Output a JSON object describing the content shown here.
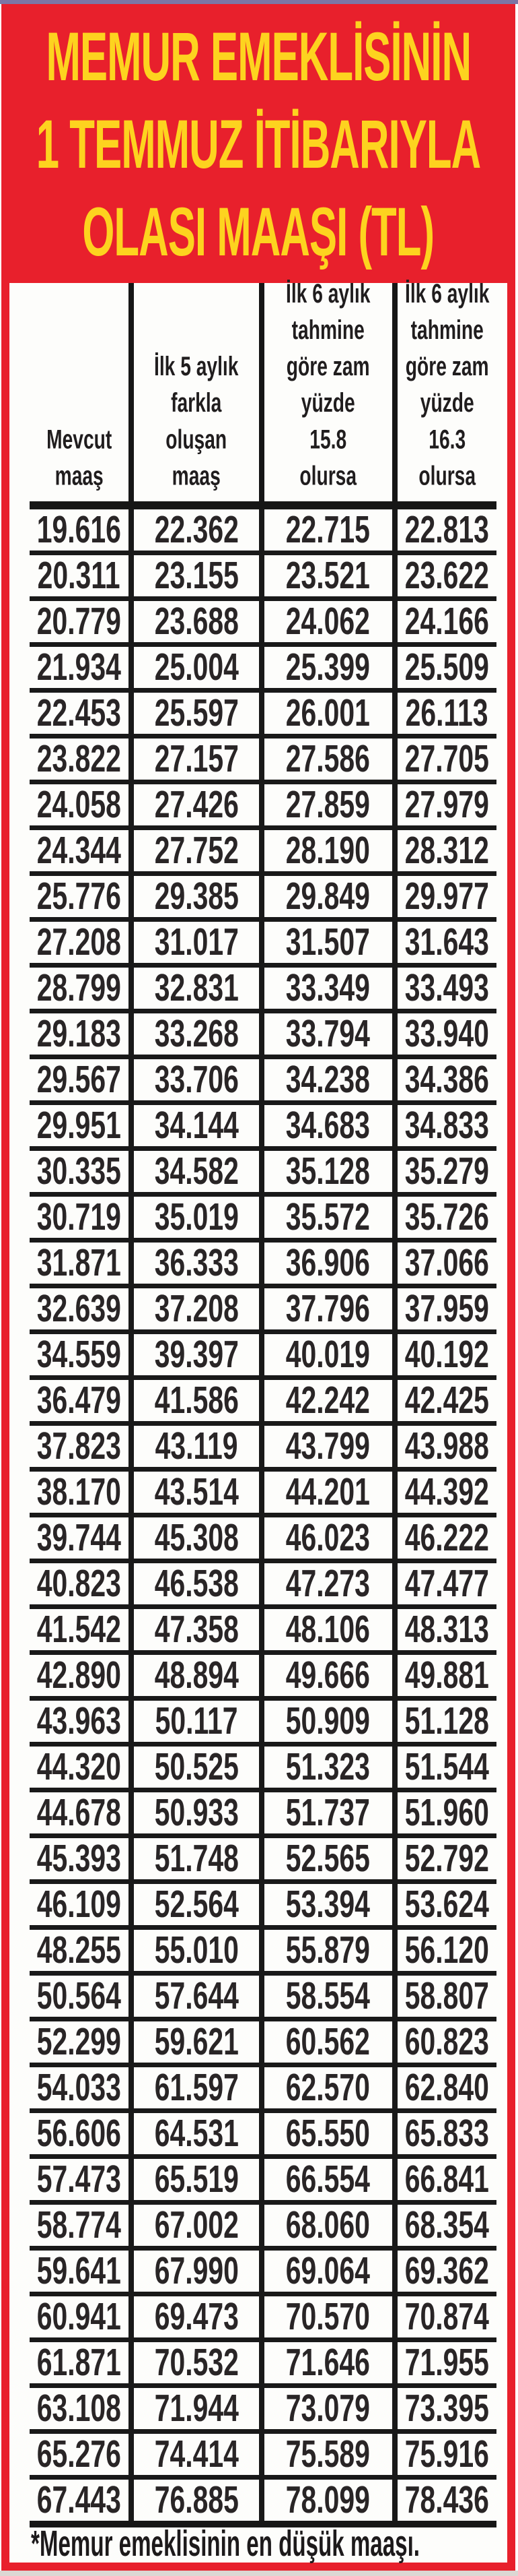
{
  "title": {
    "line1": "MEMUR EMEKLİSİNİN",
    "line2": "1 TEMMUZ İTİBARIYLA",
    "line3": "OLASI MAAŞI (TL)"
  },
  "footnote": "*Memur emeklisinin en düşük maaşı.",
  "colors": {
    "header_background": "#e8202c",
    "title_text": "#fdd31f",
    "table_text": "#292526",
    "grid_lines": "#191919",
    "top_strip": "#7c76a5",
    "frame_border": "#e8202c"
  },
  "table": {
    "columns": [
      {
        "label": "Mevcut maaş",
        "lines": [
          "Mevcut",
          "maaş"
        ]
      },
      {
        "label": "İlk 5 aylık farkla oluşan maaş",
        "lines": [
          "İlk 5 aylık",
          "farkla",
          "oluşan",
          "maaş"
        ]
      },
      {
        "label": "İlk 6 aylık tahmine göre zam yüzde 15.8 olursa",
        "lines": [
          "İlk 6 aylık",
          "tahmine",
          "göre zam",
          "yüzde",
          "15.8",
          "olursa"
        ]
      },
      {
        "label": "İlk 6 aylık tahmine göre zam yüzde 16.3 olursa",
        "lines": [
          "İlk 6 aylık",
          "tahmine",
          "göre zam",
          "yüzde",
          "16.3",
          "olursa"
        ]
      }
    ],
    "rows": [
      [
        "19.616",
        "22.362",
        "22.715",
        "22.813"
      ],
      [
        "20.311",
        "23.155",
        "23.521",
        "23.622"
      ],
      [
        "20.779",
        "23.688",
        "24.062",
        "24.166"
      ],
      [
        "21.934",
        "25.004",
        "25.399",
        "25.509"
      ],
      [
        "22.453",
        "25.597",
        "26.001",
        "26.113"
      ],
      [
        "23.822",
        "27.157",
        "27.586",
        "27.705"
      ],
      [
        "24.058",
        "27.426",
        "27.859",
        "27.979"
      ],
      [
        "24.344",
        "27.752",
        "28.190",
        "28.312"
      ],
      [
        "25.776",
        "29.385",
        "29.849",
        "29.977"
      ],
      [
        "27.208",
        "31.017",
        "31.507",
        "31.643"
      ],
      [
        "28.799",
        "32.831",
        "33.349",
        "33.493"
      ],
      [
        "29.183",
        "33.268",
        "33.794",
        "33.940"
      ],
      [
        "29.567",
        "33.706",
        "34.238",
        "34.386"
      ],
      [
        "29.951",
        "34.144",
        "34.683",
        "34.833"
      ],
      [
        "30.335",
        "34.582",
        "35.128",
        "35.279"
      ],
      [
        "30.719",
        "35.019",
        "35.572",
        "35.726"
      ],
      [
        "31.871",
        "36.333",
        "36.906",
        "37.066"
      ],
      [
        "32.639",
        "37.208",
        "37.796",
        "37.959"
      ],
      [
        "34.559",
        "39.397",
        "40.019",
        "40.192"
      ],
      [
        "36.479",
        "41.586",
        "42.242",
        "42.425"
      ],
      [
        "37.823",
        "43.119",
        "43.799",
        "43.988"
      ],
      [
        "38.170",
        "43.514",
        "44.201",
        "44.392"
      ],
      [
        "39.744",
        "45.308",
        "46.023",
        "46.222"
      ],
      [
        "40.823",
        "46.538",
        "47.273",
        "47.477"
      ],
      [
        "41.542",
        "47.358",
        "48.106",
        "48.313"
      ],
      [
        "42.890",
        "48.894",
        "49.666",
        "49.881"
      ],
      [
        "43.963",
        "50.117",
        "50.909",
        "51.128"
      ],
      [
        "44.320",
        "50.525",
        "51.323",
        "51.544"
      ],
      [
        "44.678",
        "50.933",
        "51.737",
        "51.960"
      ],
      [
        "45.393",
        "51.748",
        "52.565",
        "52.792"
      ],
      [
        "46.109",
        "52.564",
        "53.394",
        "53.624"
      ],
      [
        "48.255",
        "55.010",
        "55.879",
        "56.120"
      ],
      [
        "50.564",
        "57.644",
        "58.554",
        "58.807"
      ],
      [
        "52.299",
        "59.621",
        "60.562",
        "60.823"
      ],
      [
        "54.033",
        "61.597",
        "62.570",
        "62.840"
      ],
      [
        "56.606",
        "64.531",
        "65.550",
        "65.833"
      ],
      [
        "57.473",
        "65.519",
        "66.554",
        "66.841"
      ],
      [
        "58.774",
        "67.002",
        "68.060",
        "68.354"
      ],
      [
        "59.641",
        "67.990",
        "69.064",
        "69.362"
      ],
      [
        "60.941",
        "69.473",
        "70.570",
        "70.874"
      ],
      [
        "61.871",
        "70.532",
        "71.646",
        "71.955"
      ],
      [
        "63.108",
        "71.944",
        "73.079",
        "73.395"
      ],
      [
        "65.276",
        "74.414",
        "75.589",
        "75.916"
      ],
      [
        "67.443",
        "76.885",
        "78.099",
        "78.436"
      ]
    ]
  },
  "chart_data": {
    "type": "table",
    "title": "MEMUR EMEKLİSİNİN 1 TEMMUZ İTİBARIYLA OLASI MAAŞI (TL)",
    "columns": [
      "Mevcut maaş",
      "İlk 5 aylık farkla oluşan maaş",
      "İlk 6 aylık tahmine göre zam yüzde 15.8 olursa",
      "İlk 6 aylık tahmine göre zam yüzde 16.3 olursa"
    ],
    "rows": [
      [
        19616,
        22362,
        22715,
        22813
      ],
      [
        20311,
        23155,
        23521,
        23622
      ],
      [
        20779,
        23688,
        24062,
        24166
      ],
      [
        21934,
        25004,
        25399,
        25509
      ],
      [
        22453,
        25597,
        26001,
        26113
      ],
      [
        23822,
        27157,
        27586,
        27705
      ],
      [
        24058,
        27426,
        27859,
        27979
      ],
      [
        24344,
        27752,
        28190,
        28312
      ],
      [
        25776,
        29385,
        29849,
        29977
      ],
      [
        27208,
        31017,
        31507,
        31643
      ],
      [
        28799,
        32831,
        33349,
        33493
      ],
      [
        29183,
        33268,
        33794,
        33940
      ],
      [
        29567,
        33706,
        34238,
        34386
      ],
      [
        29951,
        34144,
        34683,
        34833
      ],
      [
        30335,
        34582,
        35128,
        35279
      ],
      [
        30719,
        35019,
        35572,
        35726
      ],
      [
        31871,
        36333,
        36906,
        37066
      ],
      [
        32639,
        37208,
        37796,
        37959
      ],
      [
        34559,
        39397,
        40019,
        40192
      ],
      [
        36479,
        41586,
        42242,
        42425
      ],
      [
        37823,
        43119,
        43799,
        43988
      ],
      [
        38170,
        43514,
        44201,
        44392
      ],
      [
        39744,
        45308,
        46023,
        46222
      ],
      [
        40823,
        46538,
        47273,
        47477
      ],
      [
        41542,
        47358,
        48106,
        48313
      ],
      [
        42890,
        48894,
        49666,
        49881
      ],
      [
        43963,
        50117,
        50909,
        51128
      ],
      [
        44320,
        50525,
        51323,
        51544
      ],
      [
        44678,
        50933,
        51737,
        51960
      ],
      [
        45393,
        51748,
        52565,
        52792
      ],
      [
        46109,
        52564,
        53394,
        53624
      ],
      [
        48255,
        55010,
        55879,
        56120
      ],
      [
        50564,
        57644,
        58554,
        58807
      ],
      [
        52299,
        59621,
        60562,
        60823
      ],
      [
        54033,
        61597,
        62570,
        62840
      ],
      [
        56606,
        64531,
        65550,
        65833
      ],
      [
        57473,
        65519,
        66554,
        66841
      ],
      [
        58774,
        67002,
        68060,
        68354
      ],
      [
        59641,
        67990,
        69064,
        69362
      ],
      [
        60941,
        69473,
        70570,
        70874
      ],
      [
        61871,
        70532,
        71646,
        71955
      ],
      [
        63108,
        71944,
        73079,
        73395
      ],
      [
        65276,
        74414,
        75589,
        75916
      ],
      [
        67443,
        76885,
        78099,
        78436
      ]
    ],
    "footnote": "*Memur emeklisinin en düşük maaşı."
  }
}
